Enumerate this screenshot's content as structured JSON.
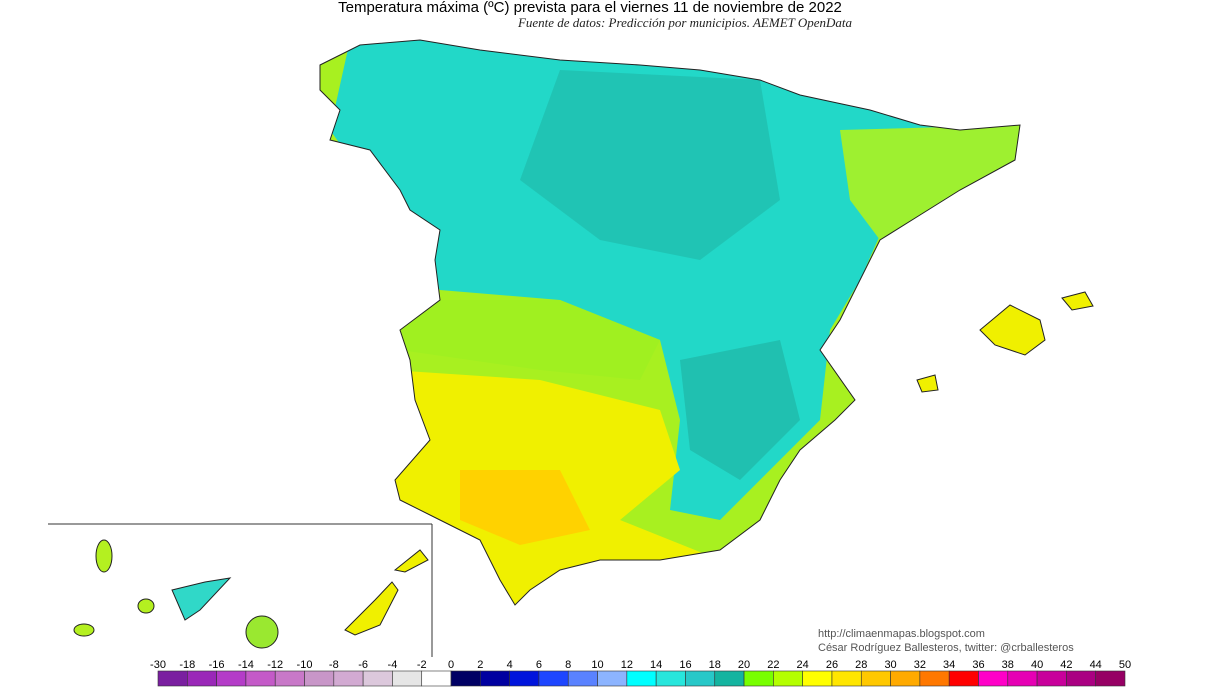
{
  "title": "Temperatura máxima (ºC) prevista para el viernes 11 de noviembre de 2022",
  "subtitle": "Fuente de datos: Predicción por municipios. AEMET OpenData",
  "credits": [
    "http://climaenmapas.blogspot.com",
    "César Rodríguez Ballesteros, twitter: @crballesteros"
  ],
  "colorbar": {
    "ticks": [
      -30,
      -18,
      -16,
      -14,
      -12,
      -10,
      -8,
      -6,
      -4,
      -2,
      0,
      2,
      4,
      6,
      8,
      10,
      12,
      14,
      16,
      18,
      20,
      22,
      24,
      26,
      28,
      30,
      32,
      34,
      36,
      38,
      40,
      42,
      44,
      50
    ],
    "colors": [
      "#7a1fa0",
      "#9a28b8",
      "#b43cc8",
      "#c45ac8",
      "#c878c8",
      "#c896c8",
      "#d2aad2",
      "#dcc8dc",
      "#e6e6e6",
      "#ffffff",
      "#000064",
      "#0000a0",
      "#0014dc",
      "#1e46ff",
      "#5a82ff",
      "#8cb4ff",
      "#00ffff",
      "#28e6dc",
      "#28c8c8",
      "#14b4a0",
      "#78ff00",
      "#b4ff00",
      "#ffff00",
      "#ffe600",
      "#ffc800",
      "#ffaa00",
      "#ff7800",
      "#ff0000",
      "#ff00c8",
      "#e600b4",
      "#c8009b",
      "#aa0082",
      "#960064"
    ]
  }
}
